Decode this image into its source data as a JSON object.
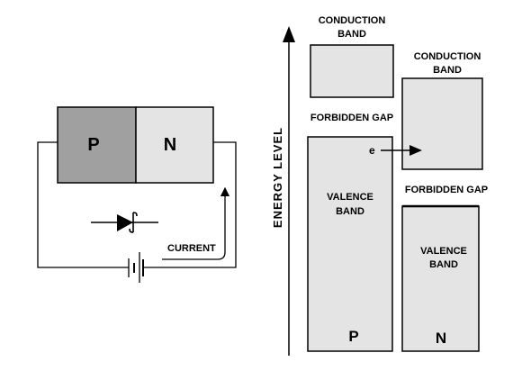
{
  "circuit": {
    "p_label": "P",
    "n_label": "N",
    "current_label": "CURRENT"
  },
  "energy": {
    "axis_label": "ENERGY LEVEL",
    "p_side": {
      "conduction_line1": "CONDUCTION",
      "conduction_line2": "BAND",
      "forbidden": "FORBIDDEN GAP",
      "valence_line1": "VALENCE",
      "valence_line2": "BAND",
      "label": "P"
    },
    "n_side": {
      "conduction_line1": "CONDUCTION",
      "conduction_line2": "BAND",
      "forbidden": "FORBIDDEN GAP",
      "valence_line1": "VALENCE",
      "valence_line2": "BAND",
      "label": "N"
    },
    "electron_label": "e"
  },
  "colors": {
    "p_fill": "#a0a0a0",
    "n_fill": "#e4e4e4",
    "band_fill": "#e4e4e4",
    "stroke": "#000000"
  }
}
